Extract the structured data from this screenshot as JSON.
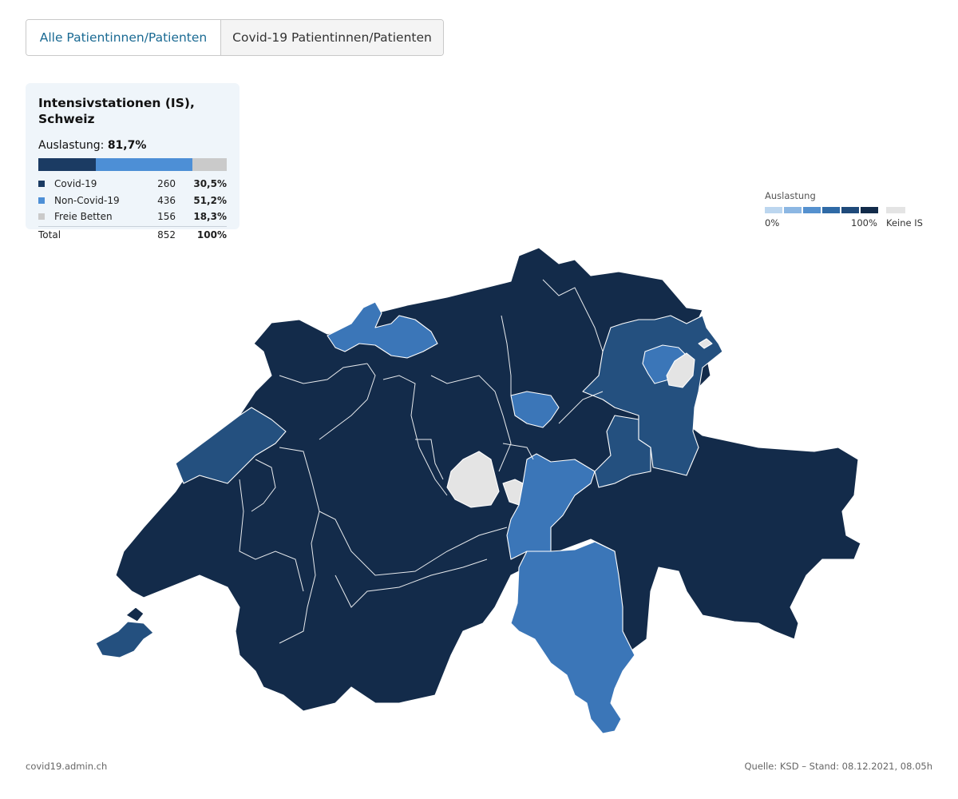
{
  "tabs": [
    {
      "label": "Alle Patientinnen/Patienten",
      "active": true
    },
    {
      "label": "Covid-19 Patientinnen/Patienten",
      "active": false
    }
  ],
  "summary": {
    "title": "Intensivstationen (IS), Schweiz",
    "utilization_label": "Auslastung:",
    "utilization_value": "81,7%",
    "rows": [
      {
        "label": "Covid-19",
        "count": "260",
        "share": "30,5%",
        "fraction": 0.305,
        "color": "#1b3b63"
      },
      {
        "label": "Non-Covid-19",
        "count": "436",
        "share": "51,2%",
        "fraction": 0.512,
        "color": "#4d8fd6"
      },
      {
        "label": "Freie Betten",
        "count": "156",
        "share": "18,3%",
        "fraction": 0.183,
        "color": "#cacaca"
      }
    ],
    "total": {
      "label": "Total",
      "count": "852",
      "share": "100%"
    }
  },
  "legend": {
    "title": "Auslastung",
    "min_label": "0%",
    "max_label": "100%",
    "no_data_label": "Keine IS",
    "scale_colors": [
      "#bcd6ef",
      "#8cb7e3",
      "#5591cf",
      "#2f6aa6",
      "#1f4a7a",
      "#122b4a"
    ],
    "no_data_color": "#e4e4e4"
  },
  "map": {
    "colors": {
      "very_high": "#132b4a",
      "high": "#24507f",
      "medium": "#3b76b8",
      "none": "#e4e4e4"
    }
  },
  "footer": {
    "source_left": "covid19.admin.ch",
    "source_right": "Quelle: KSD – Stand: 08.12.2021, 08.05h"
  }
}
